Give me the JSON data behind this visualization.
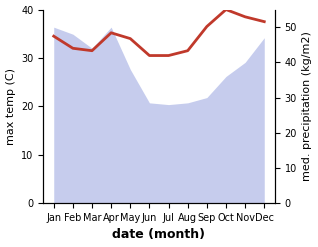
{
  "months": [
    "Jan",
    "Feb",
    "Mar",
    "Apr",
    "May",
    "Jun",
    "Jul",
    "Aug",
    "Sep",
    "Oct",
    "Nov",
    "Dec"
  ],
  "x": [
    0,
    1,
    2,
    3,
    4,
    5,
    6,
    7,
    8,
    9,
    10,
    11
  ],
  "temp": [
    34.5,
    32.0,
    31.5,
    35.2,
    34.0,
    30.5,
    30.5,
    31.5,
    36.5,
    40.0,
    38.5,
    37.5
  ],
  "precip": [
    50.0,
    48.0,
    44.0,
    50.0,
    38.0,
    28.5,
    28.0,
    28.5,
    30.0,
    36.0,
    40.0,
    47.0
  ],
  "temp_color": "#c0392b",
  "precip_fill_color": "#b3bce8",
  "precip_fill_alpha": 0.75,
  "ylabel_left": "max temp (C)",
  "ylabel_right": "med. precipitation (kg/m2)",
  "xlabel": "date (month)",
  "ylim_left": [
    0,
    40
  ],
  "ylim_right": [
    0,
    55
  ],
  "yticks_left": [
    0,
    10,
    20,
    30,
    40
  ],
  "yticks_right": [
    0,
    10,
    20,
    30,
    40,
    50
  ],
  "bg_color": "#ffffff",
  "temp_linewidth": 2.0,
  "xlabel_fontsize": 9,
  "ylabel_fontsize": 8,
  "tick_fontsize": 7
}
